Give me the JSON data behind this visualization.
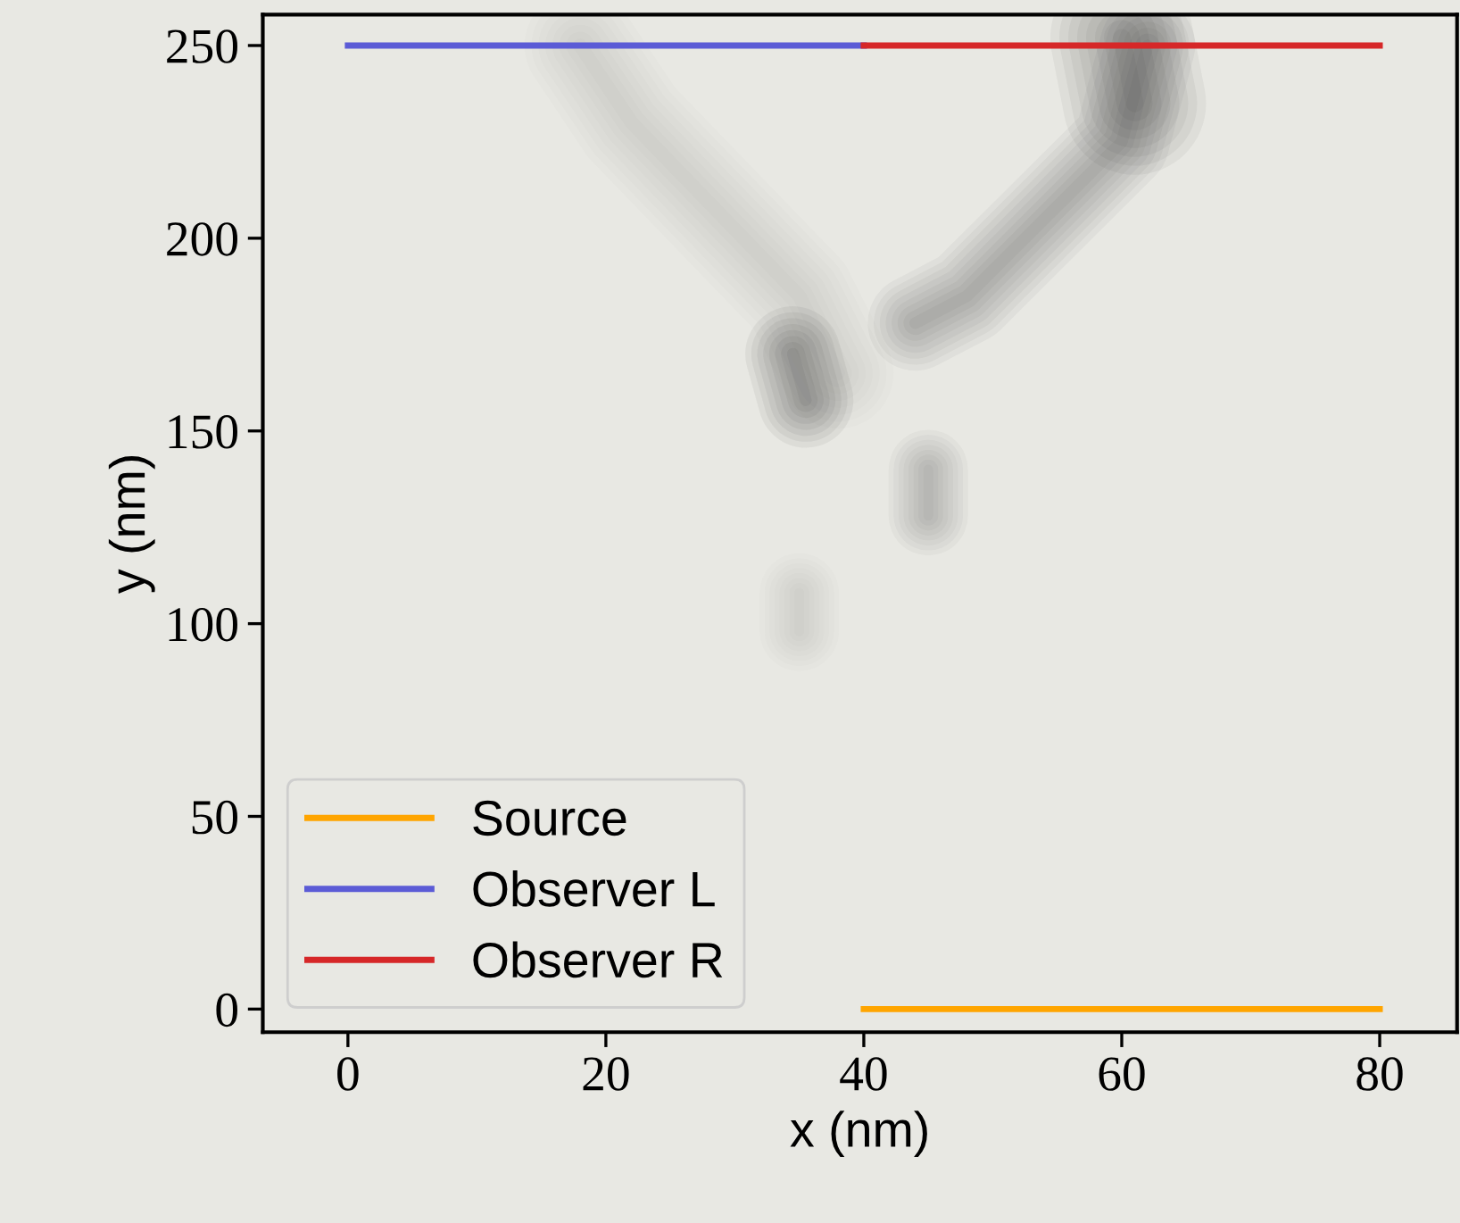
{
  "chart_data": {
    "type": "line",
    "xlabel": "x (nm)",
    "ylabel": "y (nm)",
    "xlim": [
      -6.6,
      86
    ],
    "ylim": [
      -6,
      258
    ],
    "xticks": [
      0,
      20,
      40,
      60,
      80
    ],
    "yticks": [
      0,
      50,
      100,
      150,
      200,
      250
    ],
    "grid": false,
    "legend": "bottom left",
    "marker": "none",
    "line_style": "solid",
    "series": [
      {
        "name": "Source",
        "color": "#ffa500",
        "x": [
          40,
          80
        ],
        "values": [
          0,
          0
        ]
      },
      {
        "name": "Observer L",
        "color": "#5b5bd6",
        "x": [
          0,
          40
        ],
        "values": [
          250,
          250
        ]
      },
      {
        "name": "Observer R",
        "color": "#d62728",
        "x": [
          40,
          80
        ],
        "values": [
          250,
          250
        ]
      }
    ]
  }
}
